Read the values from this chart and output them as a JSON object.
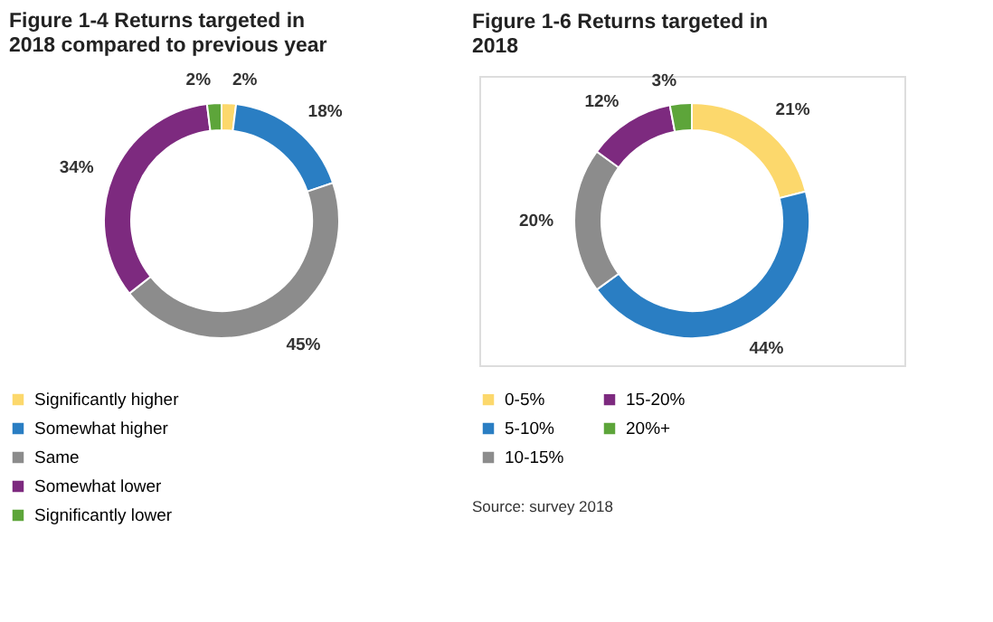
{
  "chart_data": [
    {
      "type": "donut",
      "title": "Figure 1-4 Returns targeted in 2018 compared to previous year",
      "categories": [
        "Significantly higher",
        "Somewhat higher",
        "Same",
        "Somewhat lower",
        "Significantly lower"
      ],
      "values": [
        2,
        18,
        45,
        34,
        2
      ],
      "value_labels": [
        "2%",
        "18%",
        "45%",
        "34%",
        "2%"
      ],
      "colors": [
        "#fcd86c",
        "#2a7ec3",
        "#8c8c8c",
        "#7d2a7f",
        "#5da53a"
      ],
      "legend": "bottom"
    },
    {
      "type": "donut",
      "title": "Figure 1-6 Returns targeted in 2018",
      "categories": [
        "0-5%",
        "5-10%",
        "10-15%",
        "15-20%",
        "20%+"
      ],
      "values": [
        21,
        44,
        20,
        12,
        3
      ],
      "value_labels": [
        "21%",
        "44%",
        "20%",
        "12%",
        "3%"
      ],
      "colors": [
        "#fcd86c",
        "#2a7ec3",
        "#8c8c8c",
        "#7d2a7f",
        "#5da53a"
      ],
      "legend": "bottom",
      "annotations": [
        "Source: survey 2018"
      ]
    }
  ]
}
